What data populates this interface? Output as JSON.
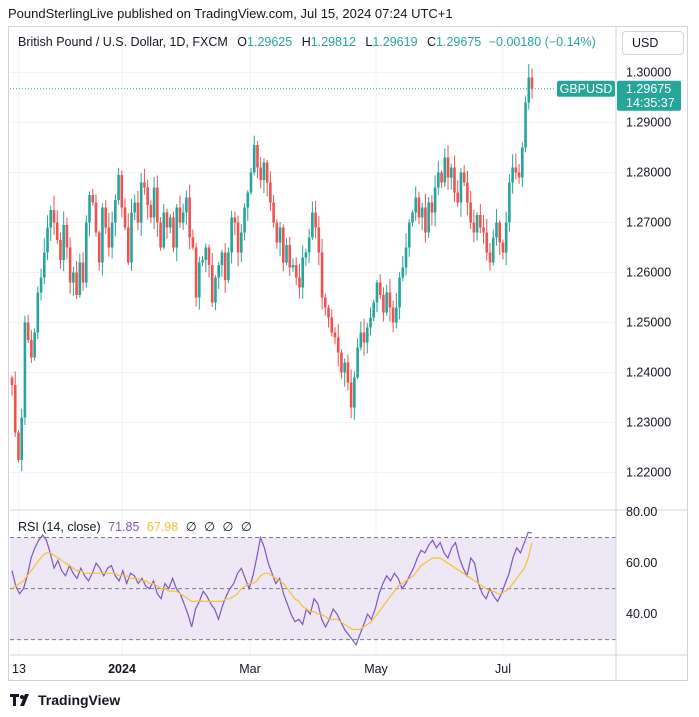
{
  "header": {
    "publisher": "PoundSterlingLive",
    "published_text": "published on TradingView.com, Jul 15, 2024 07:24 UTC+1"
  },
  "legend": {
    "symbol": "British Pound / U.S. Dollar, 1D, FXCM",
    "open_label": "O",
    "open": "1.29625",
    "high_label": "H",
    "high": "1.29812",
    "low_label": "L",
    "low": "1.29619",
    "close_label": "C",
    "close": "1.29675",
    "change": "−0.00180 (−0.14%)"
  },
  "currency_button": "USD",
  "price_tag": {
    "symbol": "GBPUSD",
    "price": "1.29675",
    "countdown": "14:35:37"
  },
  "rsi_legend": {
    "label": "RSI (14, close)",
    "rsi_value": "71.85",
    "ma_value": "67.98",
    "na": [
      "∅",
      "∅",
      "∅",
      "∅"
    ]
  },
  "footer": {
    "brand": "TradingView"
  },
  "colors": {
    "up": "#26a69a",
    "down": "#ef5350",
    "rsi_line": "#7e57c2",
    "rsi_ma": "#fbc02d",
    "rsi_band": "#ede7f6"
  },
  "chart_data": [
    {
      "type": "candlestick",
      "title": "British Pound / U.S. Dollar, 1D, FXCM",
      "ylim": [
        1.2125,
        1.3025
      ],
      "y_ticks": [
        "1.30000",
        "1.29000",
        "1.28000",
        "1.27000",
        "1.26000",
        "1.25000",
        "1.24000",
        "1.23000",
        "1.22000"
      ],
      "x_ticks": [
        "13",
        "2024",
        "Mar",
        "May",
        "Jul"
      ],
      "last_price": 1.29675,
      "close_series": [
        1.2375,
        1.228,
        1.2225,
        1.231,
        1.25,
        1.2465,
        1.243,
        1.248,
        1.256,
        1.259,
        1.264,
        1.269,
        1.2725,
        1.27,
        1.2665,
        1.2625,
        1.2695,
        1.265,
        1.258,
        1.26,
        1.2555,
        1.262,
        1.258,
        1.27,
        1.2755,
        1.274,
        1.268,
        1.262,
        1.273,
        1.269,
        1.265,
        1.27,
        1.2745,
        1.2795,
        1.273,
        1.269,
        1.262,
        1.272,
        1.274,
        1.27,
        1.278,
        1.277,
        1.2735,
        1.271,
        1.277,
        1.27,
        1.265,
        1.272,
        1.269,
        1.271,
        1.265,
        1.273,
        1.27,
        1.272,
        1.275,
        1.267,
        1.265,
        1.255,
        1.262,
        1.2625,
        1.265,
        1.2615,
        1.254,
        1.259,
        1.2615,
        1.264,
        1.2585,
        1.264,
        1.271,
        1.27,
        1.264,
        1.268,
        1.273,
        1.276,
        1.28,
        1.2855,
        1.281,
        1.2785,
        1.282,
        1.278,
        1.274,
        1.27,
        1.266,
        1.269,
        1.262,
        1.2655,
        1.261,
        1.2615,
        1.259,
        1.257,
        1.263,
        1.264,
        1.267,
        1.272,
        1.269,
        1.264,
        1.255,
        1.253,
        1.251,
        1.248,
        1.247,
        1.244,
        1.24,
        1.242,
        1.238,
        1.233,
        1.239,
        1.245,
        1.248,
        1.246,
        1.249,
        1.251,
        1.254,
        1.258,
        1.2555,
        1.252,
        1.256,
        1.253,
        1.25,
        1.253,
        1.259,
        1.261,
        1.265,
        1.27,
        1.272,
        1.275,
        1.271,
        1.273,
        1.268,
        1.274,
        1.272,
        1.277,
        1.28,
        1.278,
        1.283,
        1.279,
        1.281,
        1.276,
        1.274,
        1.28,
        1.278,
        1.274,
        1.27,
        1.268,
        1.2715,
        1.269,
        1.268,
        1.264,
        1.262,
        1.267,
        1.27,
        1.266,
        1.264,
        1.27,
        1.278,
        1.281,
        1.28,
        1.279,
        1.285,
        1.294,
        1.299,
        1.29675
      ]
    },
    {
      "type": "line",
      "title": "RSI (14, close)",
      "ylim": [
        24,
        80
      ],
      "y_ticks": [
        "80.00",
        "60.00",
        "40.00"
      ],
      "bands": [
        30,
        50,
        70
      ],
      "series": [
        {
          "name": "RSI (14, close)",
          "last": 71.85,
          "values": [
            57,
            51,
            48,
            50,
            55,
            62,
            66,
            69,
            71,
            69,
            64,
            58,
            61,
            57,
            55,
            59,
            56,
            54,
            58,
            55,
            53,
            56,
            60,
            58,
            55,
            58,
            59,
            55,
            53,
            57,
            52,
            56,
            55,
            52,
            54,
            51,
            50,
            53,
            48,
            46,
            52,
            50,
            54,
            50,
            48,
            44,
            40,
            35,
            42,
            45,
            49,
            47,
            44,
            42,
            38,
            43,
            47,
            50,
            52,
            56,
            58,
            54,
            50,
            55,
            62,
            70,
            66,
            60,
            56,
            52,
            54,
            48,
            44,
            40,
            37,
            38,
            36,
            42,
            40,
            46,
            44,
            38,
            35,
            38,
            42,
            40,
            37,
            34,
            32,
            30,
            28,
            32,
            36,
            40,
            38,
            42,
            48,
            52,
            55,
            53,
            56,
            54,
            50,
            52,
            55,
            58,
            62,
            65,
            64,
            67,
            69,
            66,
            68,
            64,
            62,
            66,
            68,
            62,
            58,
            55,
            62,
            60,
            52,
            48,
            46,
            50,
            47,
            45,
            48,
            52,
            56,
            62,
            66,
            64,
            68,
            72,
            71.85
          ]
        },
        {
          "name": "RSI-based MA",
          "last": 67.98,
          "values": [
            50,
            51,
            52,
            53,
            55,
            57,
            59,
            61,
            63,
            64,
            64,
            63,
            62,
            61,
            60,
            59,
            58,
            57,
            57,
            56,
            56,
            56,
            56,
            56,
            56,
            56,
            56,
            56,
            55,
            55,
            55,
            54,
            54,
            54,
            53,
            53,
            52,
            52,
            51,
            50,
            50,
            49,
            49,
            49,
            48,
            47,
            46,
            45,
            45,
            45,
            45,
            45,
            45,
            45,
            45,
            45,
            46,
            46,
            47,
            48,
            50,
            51,
            52,
            52,
            53,
            55,
            56,
            56,
            55,
            54,
            53,
            52,
            50,
            48,
            46,
            45,
            43,
            42,
            41,
            41,
            40,
            40,
            39,
            38,
            38,
            38,
            37,
            36,
            35,
            34,
            34,
            34,
            35,
            36,
            37,
            39,
            41,
            43,
            45,
            47,
            49,
            51,
            52,
            53,
            54,
            55,
            57,
            59,
            60,
            61,
            62,
            62,
            62,
            61,
            60,
            59,
            58,
            57,
            56,
            55,
            54,
            53,
            52,
            51,
            50,
            49,
            49,
            48,
            48,
            49,
            50,
            52,
            54,
            56,
            58,
            62,
            67.98
          ]
        }
      ]
    }
  ]
}
